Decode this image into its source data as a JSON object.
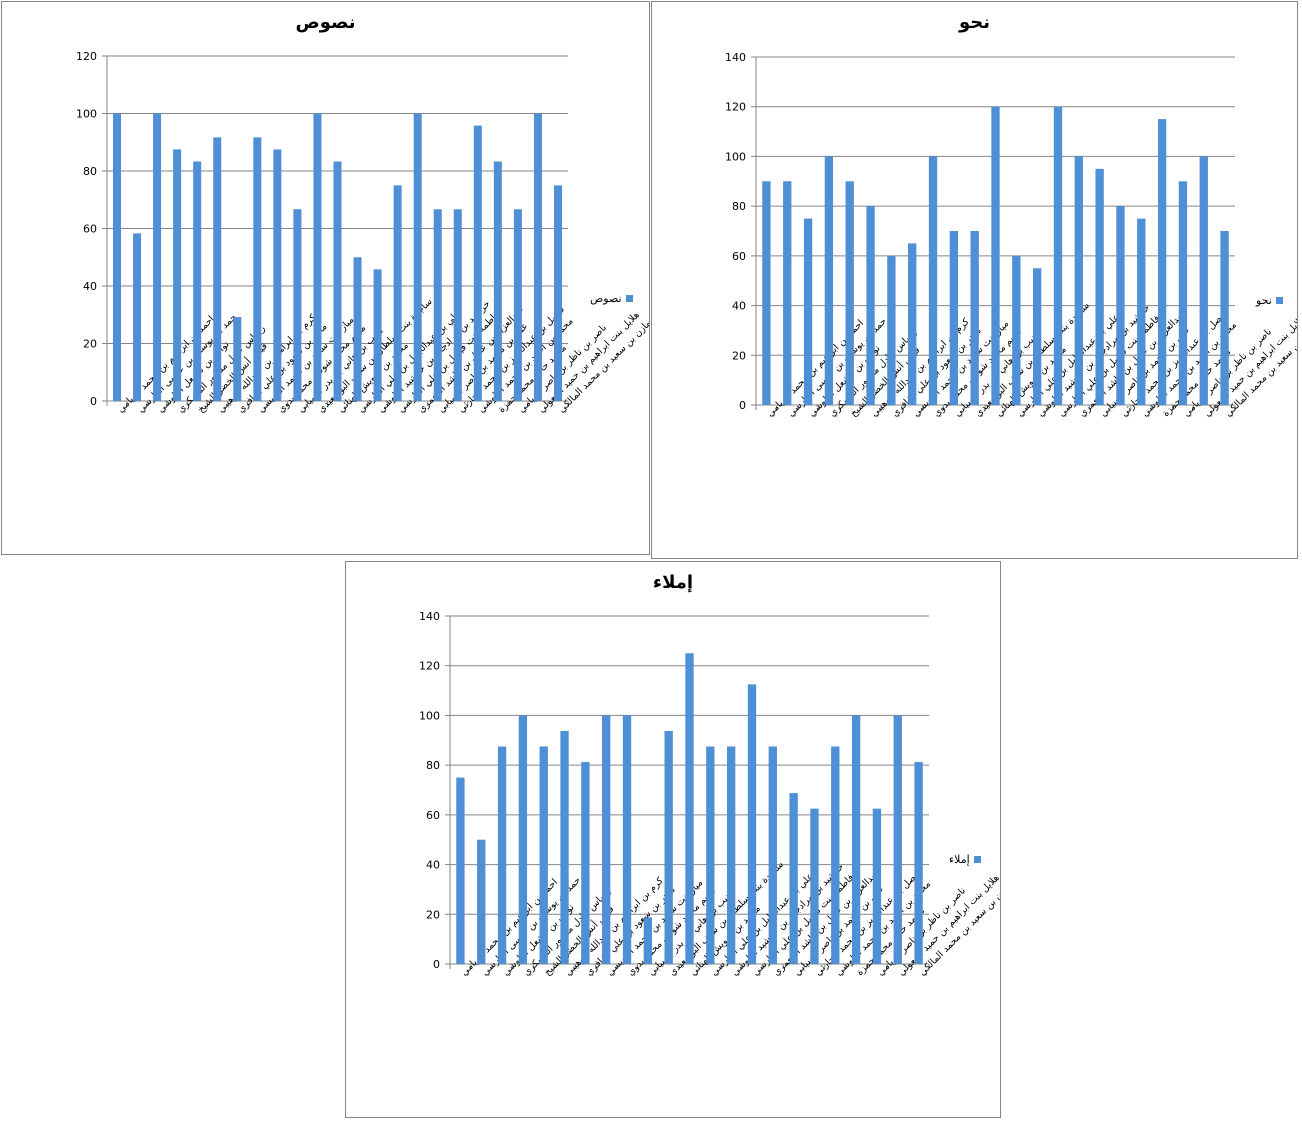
{
  "chart_data": [
    {
      "type": "bar",
      "title": "نصوص",
      "legend": "نصوص",
      "legend_position": "right",
      "color": "#4f8fd6",
      "ylim": [
        0,
        120
      ],
      "yticks": [
        0,
        20,
        40,
        60,
        80,
        100,
        120
      ],
      "grid": true,
      "values": [
        100,
        58.3,
        100,
        87.5,
        83.3,
        91.7,
        29.2,
        91.7,
        87.5,
        66.7,
        100,
        83.3,
        50,
        45.8,
        75,
        100,
        66.7,
        66.7,
        95.8,
        83.3,
        66.7,
        100,
        75
      ]
    },
    {
      "type": "bar",
      "title": "نحو",
      "legend": "نحو",
      "legend_position": "right",
      "color": "#4f8fd6",
      "ylim": [
        0,
        140
      ],
      "yticks": [
        0,
        20,
        40,
        60,
        80,
        100,
        120,
        140
      ],
      "grid": true,
      "values": [
        90,
        90,
        75,
        100,
        90,
        80,
        60,
        65,
        100,
        70,
        70,
        120,
        60,
        55,
        120,
        100,
        95,
        80,
        75,
        115,
        90,
        100,
        70
      ]
    },
    {
      "type": "bar",
      "title": "إملاء",
      "legend": "إملاء",
      "legend_position": "right",
      "color": "#4f8fd6",
      "ylim": [
        0,
        140
      ],
      "yticks": [
        0,
        20,
        40,
        60,
        80,
        100,
        120,
        140
      ],
      "grid": true,
      "values": [
        75,
        50,
        87.5,
        100,
        87.5,
        93.75,
        81.25,
        100,
        100,
        18.75,
        93.75,
        125,
        87.5,
        87.5,
        112.5,
        87.5,
        68.75,
        62.5,
        87.5,
        100,
        62.5,
        100,
        81.25
      ]
    }
  ],
  "categories": [
    "احمد بن ابراهيم بن محمد الريامي",
    "حمد بن يوسف بن عيسى الفارسي",
    "نواف بن مشعل البلوشي",
    "ريماس عادل منصور المسكري",
    "قيس أنس الخضر الشيخ",
    "كرم بن ابراهيم بن عبدالله الوهيبي",
    "ماهر بن سعود بن علي الغافري",
    "مياز بنت سعيد بن محمد العويسي",
    "مريم محمد شوقي محمد بدوي",
    "منيب بن هاني بن بدر السيابي",
    "ساجدة بنت سلطان بن سيف البوسعيدي",
    "محمد بن درويش الهنائي",
    "علي بن عبدالجليل بن علي الفارسي",
    "خرشيد بن مرادجان بن خرشيد البلوشي",
    "فاطمة بنت فيصل بن علي الفارسي",
    "عبدالعزيز بن عادل بن راشد المعمري",
    "علي بن محمد بن ناصر السيابي",
    "فيصل بن عبدالعزيز بن محمد الحارثي",
    "محمد بن أحمد بن محمد البلوشي",
    "محمد حاتم محمد حمزة",
    "ناصر بن ناظر بن ناصر الريامي",
    "هلايل بنت ابراهيم بن حميد المعولي",
    "مازن بن سعيد بن محمد المالكي"
  ]
}
